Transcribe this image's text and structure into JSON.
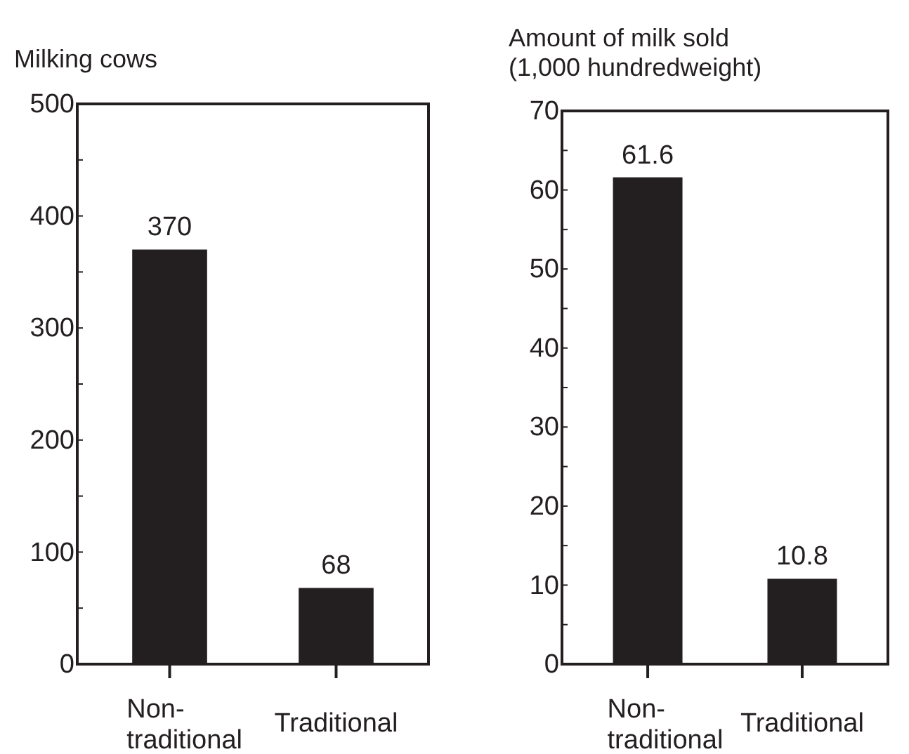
{
  "chart_data": [
    {
      "type": "bar",
      "ylabel": "Milking cows",
      "categories": [
        "Non-traditional",
        "Traditional"
      ],
      "values": [
        370,
        68
      ],
      "color": "#231f20",
      "ylim": [
        0,
        500
      ],
      "yticks": [
        0,
        {
          "value": 50,
          "label": null
        },
        100,
        {
          "value": 150,
          "label": null
        },
        200,
        {
          "value": 250,
          "label": null
        },
        300,
        {
          "value": 350,
          "label": null
        },
        400,
        {
          "value": 450,
          "label": null
        },
        500
      ],
      "data_labels": true,
      "grid": false
    },
    {
      "type": "bar",
      "ylabel": "Amount of milk sold\n(1,000 hundredweight)",
      "categories": [
        "Non-traditional",
        "Traditional"
      ],
      "values": [
        61.6,
        10.8
      ],
      "color": "#231f20",
      "ylim": [
        0,
        70
      ],
      "yticks": [
        0,
        {
          "value": 5,
          "label": null
        },
        10,
        {
          "value": 15,
          "label": null
        },
        20,
        {
          "value": 25,
          "label": null
        },
        30,
        {
          "value": 35,
          "label": null
        },
        40,
        {
          "value": 45,
          "label": null
        },
        50,
        {
          "value": 55,
          "label": null
        },
        60,
        {
          "value": 65,
          "label": null
        },
        70
      ],
      "data_labels": true,
      "grid": false
    }
  ]
}
